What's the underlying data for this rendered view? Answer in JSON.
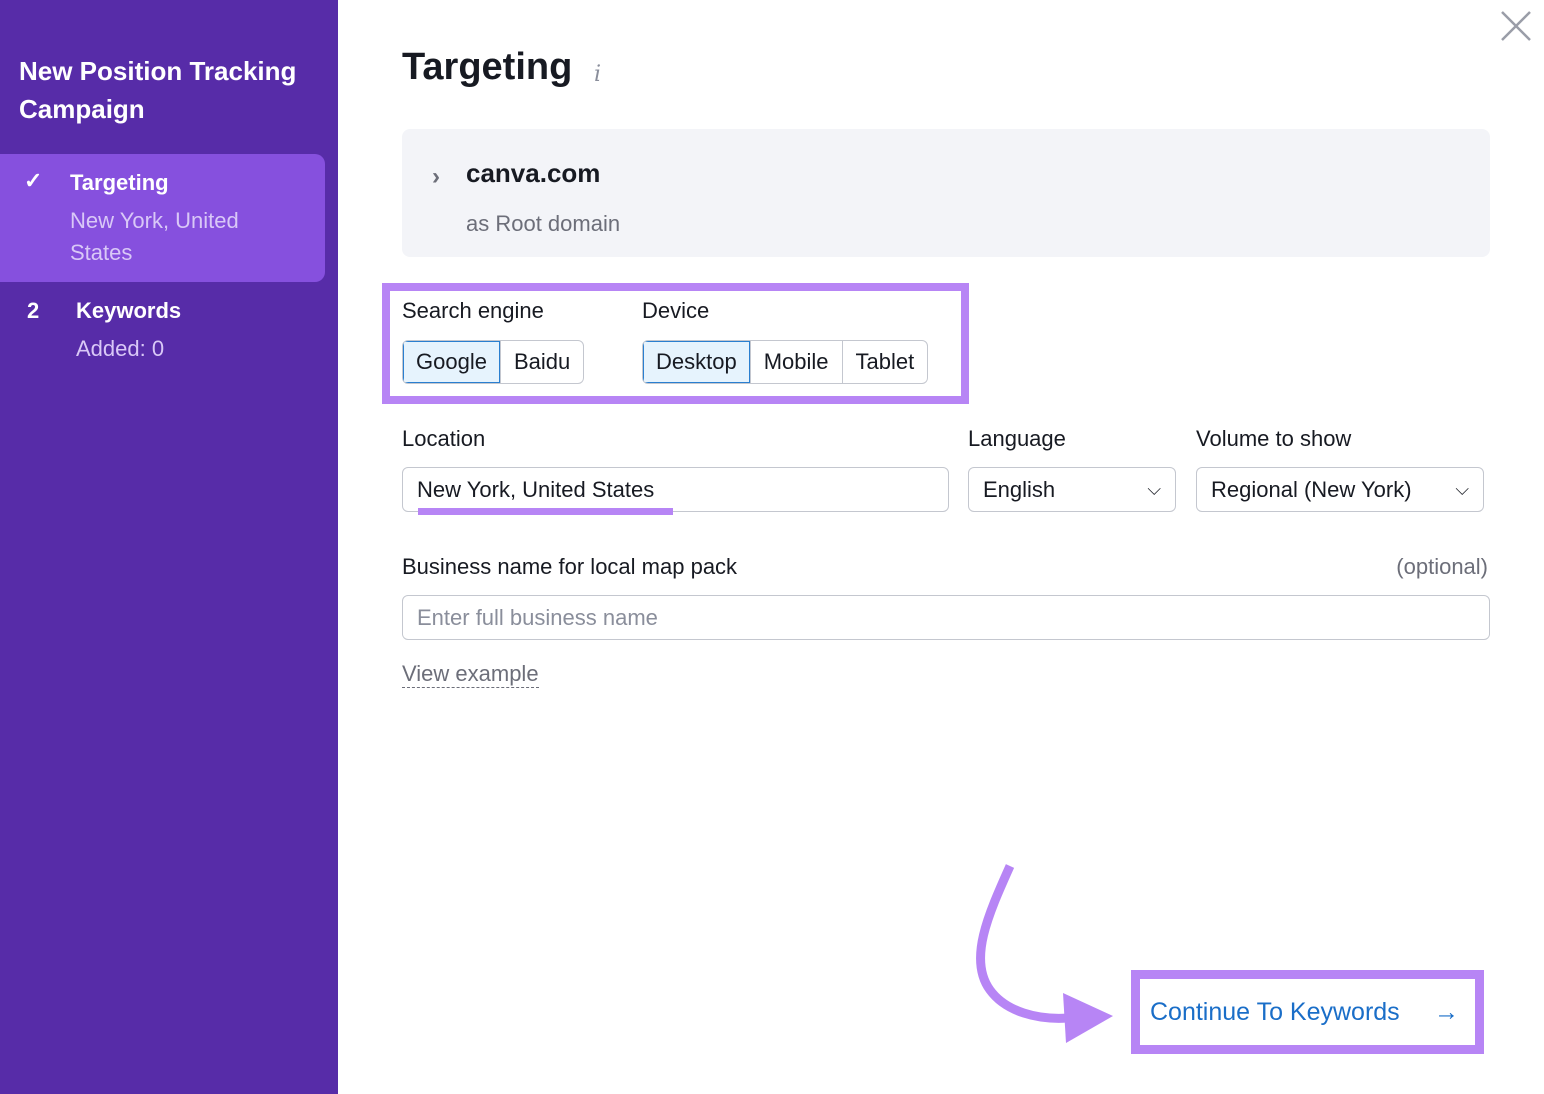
{
  "sidebar": {
    "title": "New Position Tracking Campaign",
    "steps": [
      {
        "marker": "✓",
        "label": "Targeting",
        "sub": "New York, United States"
      },
      {
        "marker": "2",
        "label": "Keywords",
        "sub": "Added: 0"
      }
    ]
  },
  "main": {
    "title": "Targeting",
    "info_icon": "i",
    "domain": {
      "name": "canva.com",
      "type": "as Root domain"
    },
    "search_engine": {
      "label": "Search engine",
      "options": [
        "Google",
        "Baidu"
      ],
      "selected": "Google"
    },
    "device": {
      "label": "Device",
      "options": [
        "Desktop",
        "Mobile",
        "Tablet"
      ],
      "selected": "Desktop"
    },
    "location": {
      "label": "Location",
      "value": "New York, United States"
    },
    "language": {
      "label": "Language",
      "value": "English"
    },
    "volume": {
      "label": "Volume to show",
      "value": "Regional (New York)"
    },
    "business": {
      "label": "Business name for local map pack",
      "optional": "(optional)",
      "placeholder": "Enter full business name"
    },
    "view_example": "View example",
    "continue_label": "Continue To Keywords",
    "continue_arrow": "→"
  },
  "colors": {
    "sidebar": "#572ca8",
    "active_step": "#8650de",
    "highlight": "#b785f5",
    "link": "#1a6ec8"
  }
}
